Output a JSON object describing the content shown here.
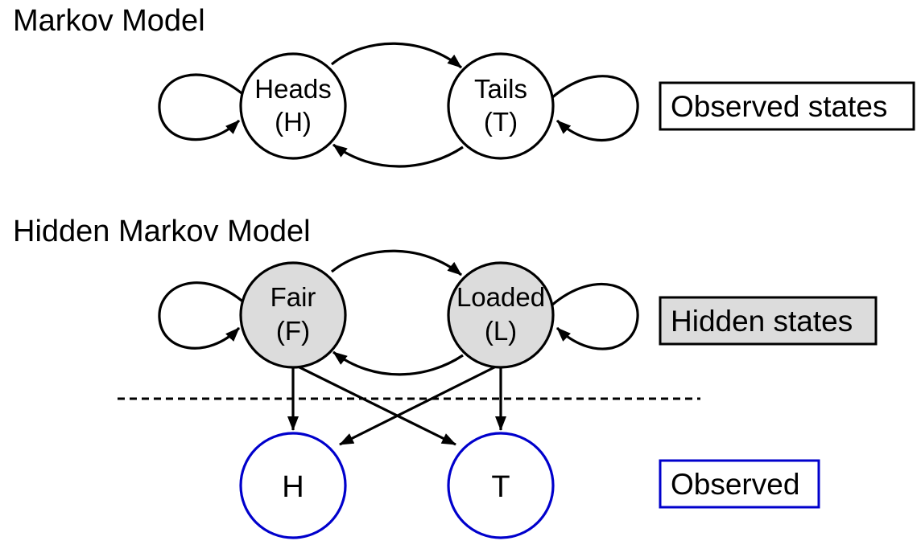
{
  "markov": {
    "title": "Markov Model",
    "states": [
      {
        "name": "Heads",
        "symbol": "(H)"
      },
      {
        "name": "Tails",
        "symbol": "(T)"
      }
    ],
    "legend": "Observed states"
  },
  "hmm": {
    "title": "Hidden Markov Model",
    "hidden_states": [
      {
        "name": "Fair",
        "symbol": "(F)"
      },
      {
        "name": "Loaded",
        "symbol": "(L)"
      }
    ],
    "observed": [
      "H",
      "T"
    ],
    "legend_hidden": "Hidden states",
    "legend_observed": "Observed"
  },
  "colors": {
    "hidden_fill": "#dcdcdc",
    "observed_stroke": "#0000cc",
    "stroke": "#000000"
  }
}
